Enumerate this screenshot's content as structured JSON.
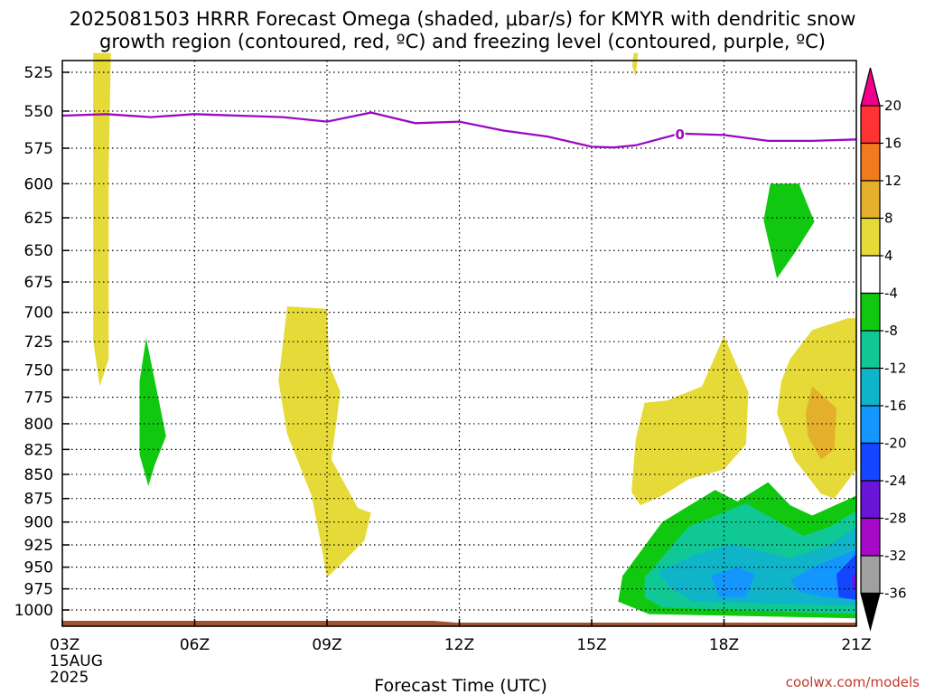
{
  "chart_data": {
    "type": "heatmap",
    "title_lines": [
      "2025081503 HRRR Forecast Omega (shaded, μbar/s) for KMYR with dendritic snow",
      "growth region (contoured, red, ºC) and freezing level (contoured, purple, ºC)"
    ],
    "xlabel": "Forecast Time (UTC)",
    "x_ticks": [
      "03Z",
      "06Z",
      "09Z",
      "12Z",
      "15Z",
      "18Z",
      "21Z"
    ],
    "x_hours": [
      3,
      6,
      9,
      12,
      15,
      18,
      21
    ],
    "xlim": [
      3,
      21
    ],
    "date_label": [
      "15AUG",
      "2025"
    ],
    "y_ticks": [
      525,
      550,
      575,
      600,
      625,
      650,
      675,
      700,
      725,
      750,
      775,
      800,
      825,
      850,
      875,
      900,
      925,
      950,
      975,
      1000
    ],
    "ylabel": "",
    "ylim": [
      515,
      1015
    ],
    "y_scale": "log-pressure (inverted)",
    "grid": true,
    "colorbar": {
      "labels": [
        "20",
        "16",
        "12",
        "8",
        "4",
        "-4",
        "-8",
        "-12",
        "-16",
        "-20",
        "-24",
        "-28",
        "-32",
        "-36"
      ],
      "colors": [
        "#f0008a",
        "#ff3333",
        "#f07a1e",
        "#e4b02c",
        "#e6da38",
        "#ffffff",
        "#10c810",
        "#10c896",
        "#10b4c8",
        "#1496ff",
        "#1446ff",
        "#6a14d8",
        "#a60ac8",
        "#a0a0a0"
      ]
    },
    "freezing_level": {
      "contour_label": "0",
      "color": "#9a0ac2",
      "hours": [
        3,
        4,
        5,
        6,
        7,
        8,
        9,
        10,
        11,
        12,
        13,
        14,
        15,
        15.5,
        16,
        17,
        18,
        19,
        20,
        21
      ],
      "pressure": [
        553,
        552,
        554,
        552,
        553,
        554,
        557,
        551,
        558,
        557,
        563,
        567,
        574,
        574.5,
        573,
        565,
        566,
        570,
        570,
        569
      ]
    },
    "ground_color": "#a0522d",
    "credit": "coolwx.com/models"
  }
}
